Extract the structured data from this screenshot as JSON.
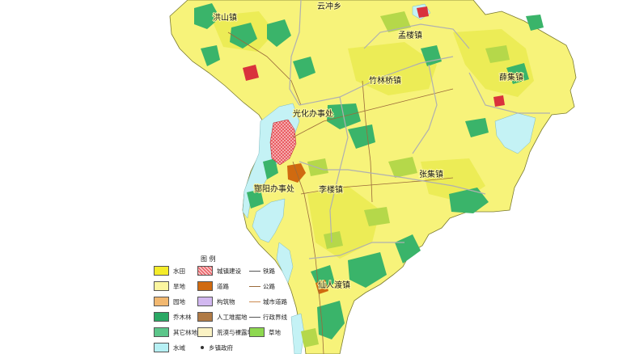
{
  "map": {
    "towns": [
      {
        "id": "hongshan",
        "label": "洪山镇"
      },
      {
        "id": "yunchong",
        "label": "云冲乡"
      },
      {
        "id": "menglou",
        "label": "孟楼镇"
      },
      {
        "id": "zhulinqiao",
        "label": "竹林桥镇"
      },
      {
        "id": "xueji",
        "label": "薛集镇"
      },
      {
        "id": "guanghua",
        "label": "光化办事处"
      },
      {
        "id": "zhangji",
        "label": "张集镇"
      },
      {
        "id": "lilou",
        "label": "李楼镇"
      },
      {
        "id": "fanyang",
        "label": "酂阳办事处"
      },
      {
        "id": "xianren",
        "label": "仙人渡镇"
      }
    ],
    "colors": {
      "dry_land": "#f7f37a",
      "paddy": "#ecec56",
      "forest": "#3ab46a",
      "water": "#c4f2f5",
      "urban": "#d9323c",
      "orchard": "#b5d84a",
      "boundary": "#b0b0b0"
    }
  },
  "legend": {
    "title": "图 例",
    "items": [
      {
        "label": "水田",
        "color": "#f4ec2a",
        "kind": "swatch"
      },
      {
        "label": "城镇建设",
        "color": "#f2a0a0",
        "kind": "hatch"
      },
      {
        "label": "铁路",
        "color": "#555555",
        "kind": "line"
      },
      {
        "label": "旱地",
        "color": "#fbf6a0",
        "kind": "swatch"
      },
      {
        "label": "道路",
        "color": "#d06a10",
        "kind": "swatch"
      },
      {
        "label": "公路",
        "color": "#9a6a3a",
        "kind": "line"
      },
      {
        "label": "园地",
        "color": "#f2b870",
        "kind": "swatch"
      },
      {
        "label": "构筑物",
        "color": "#d2b8f0",
        "kind": "swatch"
      },
      {
        "label": "城市道路",
        "color": "#cc8a50",
        "kind": "line"
      },
      {
        "label": "乔木林",
        "color": "#2aa864",
        "kind": "swatch"
      },
      {
        "label": "人工堆掘地",
        "color": "#b07a45",
        "kind": "swatch"
      },
      {
        "label": "行政界线",
        "color": "#555555",
        "kind": "line"
      },
      {
        "label": "其它林地",
        "color": "#5cc68a",
        "kind": "swatch"
      },
      {
        "label": "荒漠与裸露地表",
        "color": "#faf2c4",
        "kind": "swatch"
      },
      {
        "label": "草地",
        "color": "#8ed850",
        "kind": "swatch"
      },
      {
        "label": "水域",
        "color": "#b6f0f4",
        "kind": "swatch"
      },
      {
        "label": "乡镇政府",
        "color": "#333333",
        "kind": "dot"
      }
    ]
  }
}
